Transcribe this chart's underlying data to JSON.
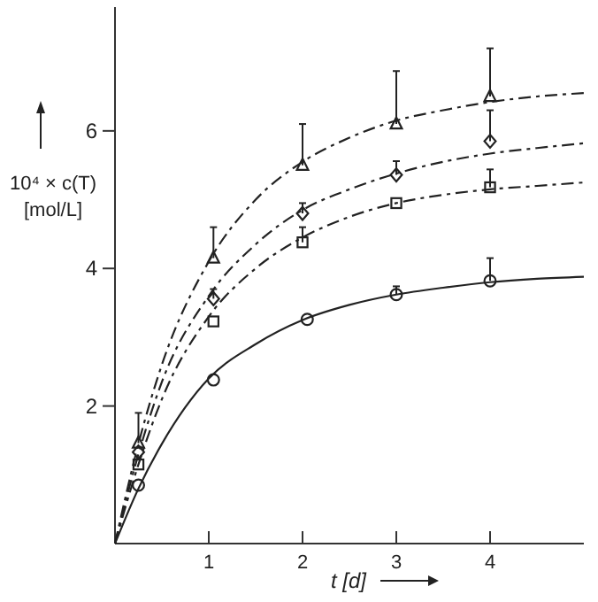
{
  "chart_data": {
    "type": "scatter",
    "xlabel": "t [d]",
    "ylabel": "10⁴ × c(T) [mol/L]",
    "xlim": [
      0,
      5
    ],
    "ylim": [
      0,
      7.8
    ],
    "xticks": [
      1,
      2,
      3,
      4
    ],
    "yticks": [
      2,
      4,
      6
    ],
    "grid": false,
    "series": [
      {
        "marker": "triangle",
        "color": "#222222",
        "x": [
          0.25,
          1.05,
          2,
          3,
          4
        ],
        "values": [
          1.46,
          4.15,
          5.5,
          6.1,
          6.5
        ],
        "errors": [
          [
            1.46,
            1.9
          ],
          [
            4.15,
            4.6
          ],
          [
            5.5,
            6.1
          ],
          [
            6.1,
            6.87
          ],
          [
            6.5,
            7.2
          ]
        ]
      },
      {
        "marker": "diamond",
        "color": "#222222",
        "x": [
          0.25,
          1.05,
          2,
          3,
          4
        ],
        "values": [
          1.33,
          3.56,
          4.8,
          5.36,
          5.85
        ],
        "errors": [
          null,
          [
            3.56,
            3.7
          ],
          [
            4.8,
            4.95
          ],
          [
            5.36,
            5.56
          ],
          [
            5.85,
            6.3
          ]
        ]
      },
      {
        "marker": "square",
        "color": "#222222",
        "x": [
          0.25,
          1.05,
          2,
          3,
          4
        ],
        "values": [
          1.15,
          3.23,
          4.38,
          4.95,
          5.18
        ],
        "errors": [
          null,
          null,
          [
            4.38,
            4.6
          ],
          null,
          [
            5.18,
            5.44
          ]
        ]
      },
      {
        "marker": "circle",
        "color": "#222222",
        "x": [
          0.25,
          1.05,
          2.05,
          3,
          4
        ],
        "values": [
          0.85,
          2.38,
          3.26,
          3.62,
          3.82
        ],
        "errors": [
          null,
          null,
          null,
          [
            3.62,
            3.74
          ],
          [
            3.82,
            4.15
          ]
        ]
      },
      {
        "type": "line",
        "line_style": "dashed",
        "marker": "none",
        "color": "#222222",
        "x": [
          0,
          0.25,
          0.5,
          1,
          1.5,
          2,
          2.5,
          3,
          3.5,
          4,
          4.5,
          5
        ],
        "values": [
          0,
          1.45,
          2.6,
          4.1,
          5.0,
          5.55,
          5.9,
          6.15,
          6.3,
          6.42,
          6.5,
          6.55
        ]
      },
      {
        "type": "line",
        "line_style": "dashed",
        "marker": "none",
        "color": "#222222",
        "x": [
          0,
          0.25,
          0.5,
          1,
          1.5,
          2,
          2.5,
          3,
          3.5,
          4,
          4.5,
          5
        ],
        "values": [
          0,
          1.3,
          2.35,
          3.6,
          4.35,
          4.85,
          5.15,
          5.38,
          5.55,
          5.67,
          5.75,
          5.82
        ]
      },
      {
        "type": "line",
        "line_style": "dashed",
        "marker": "none",
        "color": "#222222",
        "x": [
          0,
          0.25,
          0.5,
          1,
          1.5,
          2,
          2.5,
          3,
          3.5,
          4,
          4.5,
          5
        ],
        "values": [
          0,
          1.15,
          2.1,
          3.3,
          4.0,
          4.45,
          4.75,
          4.95,
          5.07,
          5.15,
          5.2,
          5.25
        ]
      },
      {
        "type": "line",
        "line_style": "solid",
        "marker": "none",
        "color": "#222222",
        "x": [
          0,
          0.25,
          0.5,
          1,
          1.5,
          2,
          2.5,
          3,
          3.5,
          4,
          4.5,
          5
        ],
        "values": [
          0,
          0.8,
          1.45,
          2.4,
          2.9,
          3.25,
          3.47,
          3.62,
          3.72,
          3.8,
          3.85,
          3.88
        ]
      }
    ]
  }
}
